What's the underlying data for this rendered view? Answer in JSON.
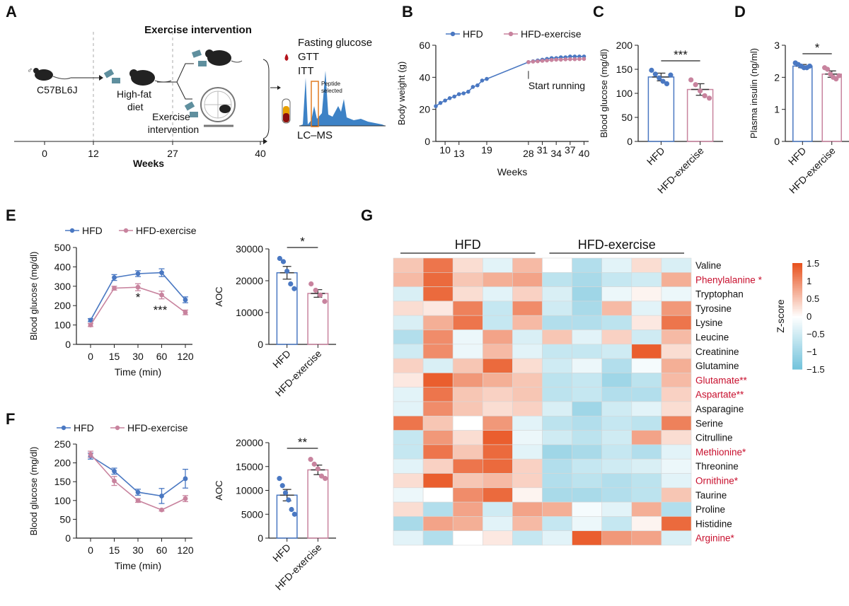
{
  "colors": {
    "hfd": "#4a78c2",
    "ex": "#c8839e",
    "red_label": "#c8102e",
    "hm_high": "#e8531f",
    "hm_mid": "#ffffff",
    "hm_low": "#6fc2db"
  },
  "panels": {
    "A": "A",
    "B": "B",
    "C": "C",
    "D": "D",
    "E": "E",
    "F": "F",
    "G": "G"
  },
  "schematic": {
    "title": "Exercise intervention",
    "strain": "C57BL6J",
    "diet": "High-fat diet",
    "exercise": "Exercise intervention",
    "tests": [
      "Fasting glucose",
      "GTT",
      "ITT"
    ],
    "peptide": "Peptide selected",
    "lcms": "LC–MS",
    "timeline_ticks": [
      "0",
      "12",
      "27",
      "40"
    ],
    "timeline_label": "Weeks"
  },
  "stars": {
    "C": "***",
    "D": "*",
    "E_t30": "*",
    "E_t60": "***",
    "E_aoc": "*",
    "F_aoc": "**"
  },
  "chart_data": [
    {
      "id": "B",
      "type": "line",
      "xlabel": "Weeks",
      "ylabel": "Body weight (g)",
      "x_ticks": [
        10,
        13,
        19,
        28,
        31,
        34,
        37,
        40
      ],
      "y_ticks": [
        0,
        20,
        40,
        60
      ],
      "ylim": [
        0,
        60
      ],
      "xlim": [
        8,
        41
      ],
      "legend": [
        "HFD",
        "HFD-exercise"
      ],
      "annotation": "Start running",
      "series": [
        {
          "name": "HFD",
          "x": [
            8,
            9,
            10,
            11,
            12,
            13,
            14,
            15,
            16,
            17,
            18,
            19,
            28,
            29,
            30,
            31,
            32,
            33,
            34,
            35,
            36,
            37,
            38,
            39,
            40
          ],
          "y": [
            22,
            24,
            25.5,
            27,
            28,
            29.5,
            30,
            31,
            34,
            35,
            38,
            39,
            49.5,
            50,
            50.5,
            51,
            51.5,
            52,
            52,
            52.5,
            52.5,
            53,
            53,
            53,
            53
          ]
        },
        {
          "name": "HFD-exercise",
          "x": [
            28,
            29,
            30,
            31,
            32,
            33,
            34,
            35,
            36,
            37,
            38,
            39,
            40
          ],
          "y": [
            49.5,
            49.8,
            50,
            50.3,
            50.5,
            50.8,
            51,
            51,
            51.2,
            51.3,
            51.3,
            51.4,
            51.5
          ]
        }
      ]
    },
    {
      "id": "C",
      "type": "bar",
      "ylabel": "Blood glucose (mg/dl)",
      "categories": [
        "HFD",
        "HFD-exercise"
      ],
      "values": [
        134,
        108
      ],
      "errors": [
        8,
        12
      ],
      "y_ticks": [
        0,
        50,
        100,
        150,
        200
      ],
      "ylim": [
        0,
        200
      ],
      "points": [
        [
          148,
          140,
          132,
          125,
          120,
          138
        ],
        [
          128,
          118,
          105,
          95,
          90
        ]
      ]
    },
    {
      "id": "D",
      "type": "bar",
      "ylabel": "Plasma insulin (ng/ml)",
      "categories": [
        "HFD",
        "HFD-exercise"
      ],
      "values": [
        2.35,
        2.1
      ],
      "errors": [
        0.05,
        0.1
      ],
      "y_ticks": [
        0,
        1,
        2,
        3
      ],
      "ylim": [
        0,
        3
      ],
      "points": [
        [
          2.45,
          2.4,
          2.35,
          2.3,
          2.3,
          2.35
        ],
        [
          2.3,
          2.25,
          2.1,
          2.0,
          1.95,
          2.05
        ]
      ]
    },
    {
      "id": "E_line",
      "type": "line",
      "xlabel": "Time (min)",
      "ylabel": "Blood glucose (mg/dl)",
      "categories": [
        "0",
        "15",
        "30",
        "60",
        "120"
      ],
      "y_ticks": [
        0,
        100,
        200,
        300,
        400,
        500
      ],
      "ylim": [
        0,
        500
      ],
      "legend": [
        "HFD",
        "HFD-exercise"
      ],
      "series": [
        {
          "name": "HFD",
          "values": [
            125,
            345,
            365,
            370,
            230
          ],
          "errors": [
            8,
            15,
            15,
            20,
            15
          ]
        },
        {
          "name": "HFD-exercise",
          "values": [
            100,
            290,
            295,
            255,
            165
          ],
          "errors": [
            8,
            10,
            18,
            20,
            12
          ]
        }
      ]
    },
    {
      "id": "E_aoc",
      "type": "bar",
      "ylabel": "AOC",
      "categories": [
        "HFD",
        "HFD-exercise"
      ],
      "values": [
        22500,
        16000
      ],
      "errors": [
        2000,
        1200
      ],
      "y_ticks": [
        0,
        10000,
        20000,
        30000
      ],
      "ylim": [
        0,
        30000
      ],
      "points": [
        [
          27000,
          26000,
          23000,
          19000,
          17500
        ],
        [
          19000,
          17000,
          15500,
          13500
        ]
      ]
    },
    {
      "id": "F_line",
      "type": "line",
      "xlabel": "Time (min)",
      "ylabel": "Blood glucose (mg/dl)",
      "categories": [
        "0",
        "15",
        "30",
        "60",
        "120"
      ],
      "y_ticks": [
        0,
        50,
        100,
        150,
        200,
        250
      ],
      "ylim": [
        0,
        250
      ],
      "legend": [
        "HFD",
        "HFD-exercise"
      ],
      "series": [
        {
          "name": "HFD",
          "values": [
            218,
            178,
            122,
            112,
            158
          ],
          "errors": [
            8,
            8,
            8,
            20,
            25
          ]
        },
        {
          "name": "HFD-exercise",
          "values": [
            223,
            152,
            100,
            75,
            105
          ],
          "errors": [
            8,
            12,
            5,
            3,
            8
          ]
        }
      ]
    },
    {
      "id": "F_aoc",
      "type": "bar",
      "ylabel": "AOC",
      "categories": [
        "HFD",
        "HFD-exercise"
      ],
      "values": [
        9000,
        14300
      ],
      "errors": [
        1200,
        1000
      ],
      "y_ticks": [
        0,
        5000,
        10000,
        15000,
        20000
      ],
      "ylim": [
        0,
        20000
      ],
      "points": [
        [
          12500,
          11000,
          9500,
          8000,
          6000,
          5000
        ],
        [
          16500,
          15500,
          14500,
          13000,
          12500
        ]
      ]
    },
    {
      "id": "G",
      "type": "heatmap",
      "groups": [
        "HFD",
        "HFD-exercise"
      ],
      "colorbar_label": "Z-score",
      "colorbar_ticks": [
        1.5,
        1,
        0.5,
        0,
        -0.5,
        -1,
        -1.5
      ],
      "rows": [
        "Valine",
        "Phenylalanine *",
        "Tryptophan",
        "Tyrosine",
        "Lysine",
        "Leucine",
        "Creatinine",
        "Glutamine",
        "Glutamate**",
        "Aspartate**",
        "Asparagine",
        "Serine",
        "Citrulline",
        "Methionine*",
        "Threonine",
        "Ornithine*",
        "Taurine",
        "Proline",
        "Histidine",
        "Arginine*"
      ],
      "highlighted": [
        1,
        8,
        9,
        13,
        15,
        19
      ],
      "values": [
        [
          0.5,
          1.2,
          0.3,
          -0.3,
          0.6,
          0,
          -0.8,
          -0.3,
          0.3,
          -0.4
        ],
        [
          0.6,
          1.3,
          0.5,
          0.7,
          0.8,
          -0.7,
          -0.9,
          -0.6,
          -0.5,
          0.7
        ],
        [
          -0.4,
          1.3,
          0.3,
          -0.3,
          0.4,
          -0.4,
          -1.0,
          -0.2,
          0.1,
          -0.2
        ],
        [
          0.3,
          0.2,
          1.1,
          -0.6,
          1.0,
          -0.5,
          -0.9,
          0.6,
          -0.3,
          0.9
        ],
        [
          -0.4,
          0.7,
          1.2,
          -0.6,
          0.6,
          -0.8,
          -0.8,
          -0.7,
          0.2,
          1.2
        ],
        [
          -0.8,
          1.0,
          -0.2,
          0.8,
          -0.4,
          0.5,
          -0.3,
          0.4,
          -0.5,
          0.6
        ],
        [
          -0.5,
          1.0,
          -0.2,
          0.6,
          -0.3,
          -0.6,
          -0.6,
          -0.5,
          1.4,
          0.3
        ],
        [
          0.4,
          -0.4,
          0.5,
          1.3,
          0.3,
          -0.5,
          -0.2,
          -0.8,
          -0.1,
          0.7
        ],
        [
          0.2,
          1.4,
          0.9,
          0.7,
          0.5,
          -0.7,
          -0.6,
          -1.0,
          -0.7,
          0.6
        ],
        [
          -0.3,
          1.2,
          0.5,
          0.4,
          0.5,
          -0.7,
          -0.6,
          -0.8,
          -0.8,
          0.4
        ],
        [
          -0.3,
          1.0,
          0.5,
          0.3,
          0.4,
          -0.4,
          -1.0,
          -0.5,
          -0.3,
          0.3
        ],
        [
          1.2,
          0.5,
          0,
          0.9,
          -0.3,
          -0.7,
          -0.8,
          -0.6,
          -0.7,
          1.1
        ],
        [
          -0.6,
          0.9,
          0.3,
          1.4,
          -0.2,
          -0.5,
          -0.7,
          -0.5,
          0.8,
          0.3
        ],
        [
          -0.6,
          1.2,
          0.5,
          1.3,
          -0.3,
          -1.0,
          -0.9,
          -0.6,
          -0.8,
          -0.3
        ],
        [
          -0.3,
          0.4,
          1.2,
          1.3,
          0.4,
          -0.8,
          -0.6,
          -0.5,
          -0.4,
          -0.2
        ],
        [
          0.3,
          1.4,
          0.5,
          0.6,
          0.4,
          -0.8,
          -0.7,
          -0.8,
          -0.7,
          -0.3
        ],
        [
          -0.2,
          0,
          1.0,
          1.3,
          0.1,
          -0.9,
          -0.9,
          -0.8,
          -0.7,
          0.5
        ],
        [
          0.3,
          -0.8,
          0.8,
          -0.5,
          0.8,
          0.7,
          -0.1,
          -0.3,
          0.7,
          -0.8
        ],
        [
          -0.9,
          0.8,
          0.7,
          -0.3,
          0.6,
          -0.6,
          -0.2,
          -0.6,
          0.1,
          1.3
        ],
        [
          -0.3,
          -0.8,
          0,
          0.2,
          -0.6,
          -0.3,
          1.4,
          0.9,
          0.8,
          -0.4
        ]
      ]
    }
  ]
}
